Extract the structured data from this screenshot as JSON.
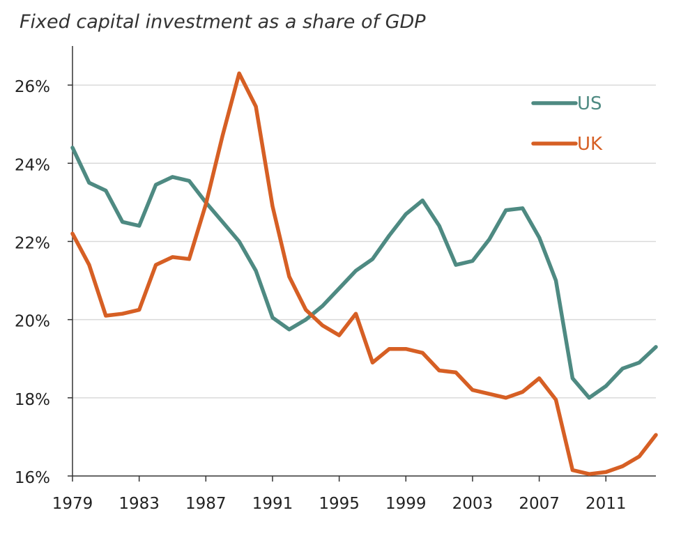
{
  "chart_data": {
    "type": "line",
    "title": "Fixed capital investment as a share of GDP",
    "xlabel": "",
    "ylabel": "",
    "x": [
      1979,
      1980,
      1981,
      1982,
      1983,
      1984,
      1985,
      1986,
      1987,
      1988,
      1989,
      1990,
      1991,
      1992,
      1993,
      1994,
      1995,
      1996,
      1997,
      1998,
      1999,
      2000,
      2001,
      2002,
      2003,
      2004,
      2005,
      2006,
      2007,
      2008,
      2009,
      2010,
      2011,
      2012,
      2013,
      2014
    ],
    "x_ticks": [
      "1979",
      "1983",
      "1987",
      "1991",
      "1995",
      "1999",
      "2003",
      "2007",
      "2011"
    ],
    "x_tick_values": [
      1979,
      1983,
      1987,
      1991,
      1995,
      1999,
      2003,
      2007,
      2011
    ],
    "xlim": [
      1979,
      2014
    ],
    "ylim": [
      16,
      27
    ],
    "y_ticks": [
      "16%",
      "18%",
      "20%",
      "22%",
      "24%",
      "26%"
    ],
    "y_tick_values": [
      16,
      18,
      20,
      22,
      24,
      26
    ],
    "grid": true,
    "legend_position": "top-right",
    "series": [
      {
        "name": "US",
        "color": "#4e8a82",
        "values": [
          24.4,
          23.5,
          23.3,
          22.5,
          22.4,
          23.45,
          23.65,
          23.55,
          23.0,
          22.5,
          22.0,
          21.25,
          20.05,
          19.75,
          20.0,
          20.35,
          20.8,
          21.25,
          21.55,
          22.15,
          22.7,
          23.05,
          22.4,
          21.4,
          21.5,
          22.05,
          22.8,
          22.85,
          22.1,
          21.0,
          18.5,
          18.0,
          18.3,
          18.75,
          18.9,
          19.3
        ]
      },
      {
        "name": "UK",
        "color": "#d65f24",
        "values": [
          22.2,
          21.4,
          20.1,
          20.15,
          20.25,
          21.4,
          21.6,
          21.55,
          22.95,
          24.7,
          26.3,
          25.45,
          22.9,
          21.1,
          20.25,
          19.85,
          19.6,
          20.15,
          18.9,
          19.25,
          19.25,
          19.15,
          18.7,
          18.65,
          18.2,
          18.1,
          18.0,
          18.15,
          18.5,
          17.95,
          16.15,
          16.05,
          16.1,
          16.25,
          16.5,
          17.05
        ]
      }
    ]
  }
}
